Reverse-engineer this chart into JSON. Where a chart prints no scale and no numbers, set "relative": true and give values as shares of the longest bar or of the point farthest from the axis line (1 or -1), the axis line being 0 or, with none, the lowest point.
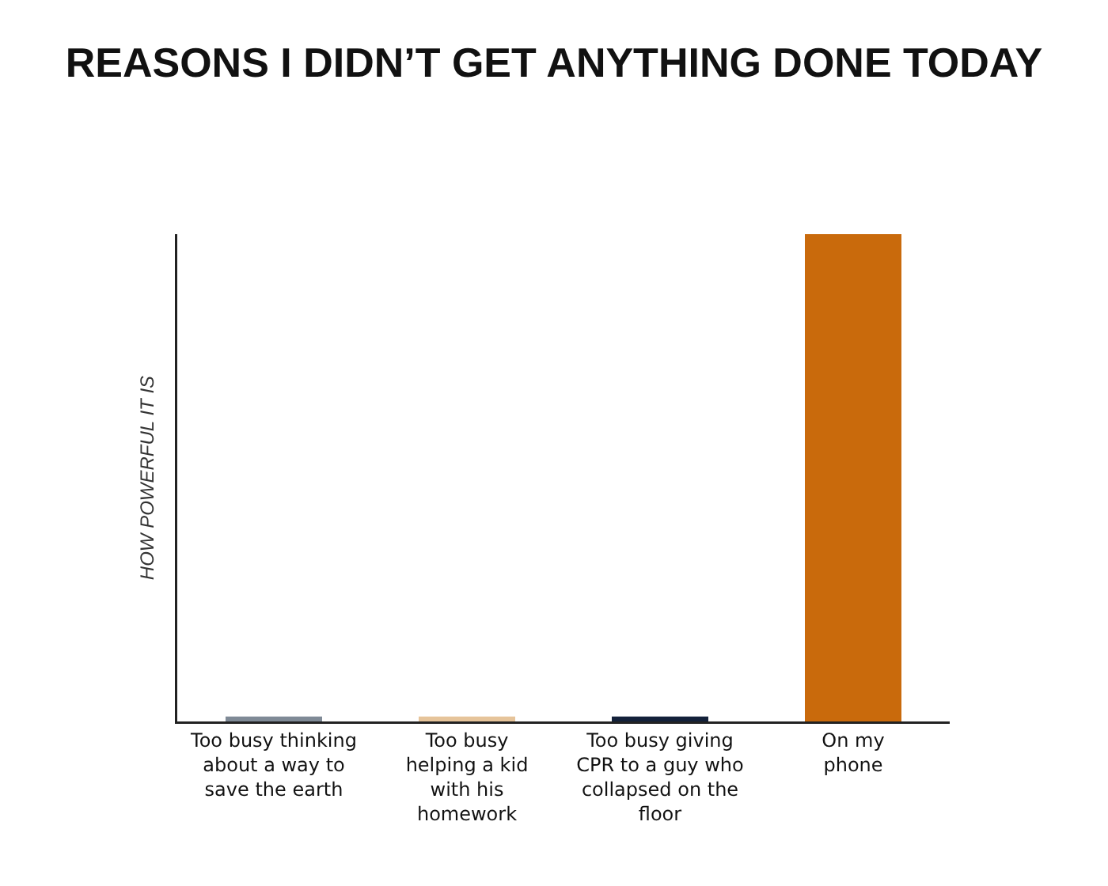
{
  "chart_data": {
    "type": "bar",
    "title": "REASONS I DIDN’T GET ANYTHING DONE TODAY",
    "ylabel": "HOW POWERFUL IT IS",
    "categories": [
      "Too busy thinking\nabout a way to\nsave the earth",
      "Too busy\nhelping a kid\nwith his\nhomework",
      "Too busy giving\nCPR to a guy who\ncollapsed on the\nfloor",
      "On my\nphone"
    ],
    "values": [
      0.01,
      0.01,
      0.01,
      1
    ],
    "colors": [
      "#7f8a96",
      "#e6c49a",
      "#13213a",
      "#c96a0c"
    ],
    "relative": true,
    "grid": false
  }
}
